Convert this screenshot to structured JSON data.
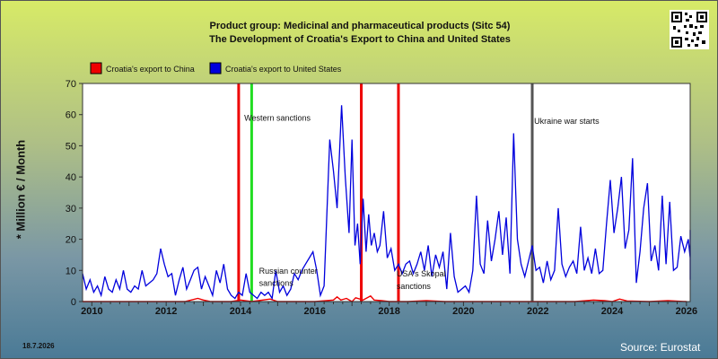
{
  "header": {
    "title_line1": "Product group: Medicinal and pharmaceutical products (Sitc 54)",
    "title_line2": "The Development of Croatia's Export to  China and United States"
  },
  "footer": {
    "date": "18.7.2026",
    "source": "Source: Eurostat"
  },
  "colors": {
    "china": "#ee0000",
    "usa": "#0000dd",
    "plot_bg": "#ffffff",
    "sanction_red": "#ee0000",
    "sanction_green": "#22dd22",
    "war_line": "#555555"
  },
  "chart_data": {
    "type": "line",
    "ylabel": "* Million € / Month",
    "xlabel": "",
    "xlim": [
      2009.75,
      2026.1
    ],
    "ylim": [
      0,
      70
    ],
    "yticks": [
      "0",
      "10",
      "20",
      "30",
      "40",
      "50",
      "60",
      "70"
    ],
    "xticks": [
      "2010",
      "2012",
      "2014",
      "2016",
      "2018",
      "2020",
      "2022",
      "2024",
      "2026"
    ],
    "grid": false,
    "legend_position": "top-left",
    "series": [
      {
        "name": "Croatia's export to China",
        "color": "#ee0000",
        "points": [
          [
            2009.75,
            0
          ],
          [
            2010.5,
            0
          ],
          [
            2011.5,
            0
          ],
          [
            2012.5,
            0
          ],
          [
            2012.85,
            1
          ],
          [
            2013.0,
            0.5
          ],
          [
            2013.2,
            0
          ],
          [
            2013.75,
            0
          ],
          [
            2014.0,
            0.5
          ],
          [
            2014.3,
            0
          ],
          [
            2014.8,
            0.8
          ],
          [
            2015.0,
            0
          ],
          [
            2015.5,
            0
          ],
          [
            2016.0,
            0
          ],
          [
            2016.5,
            0.5
          ],
          [
            2016.6,
            1.5
          ],
          [
            2016.7,
            0.5
          ],
          [
            2016.85,
            1
          ],
          [
            2017.0,
            0
          ],
          [
            2017.1,
            1.2
          ],
          [
            2017.3,
            0.5
          ],
          [
            2017.5,
            1.8
          ],
          [
            2017.6,
            0.5
          ],
          [
            2017.8,
            0.3
          ],
          [
            2018.0,
            0
          ],
          [
            2018.5,
            0
          ],
          [
            2019.0,
            0.3
          ],
          [
            2019.5,
            0
          ],
          [
            2020.0,
            0
          ],
          [
            2021.0,
            0
          ],
          [
            2022.0,
            0
          ],
          [
            2023.0,
            0
          ],
          [
            2023.5,
            0.5
          ],
          [
            2023.8,
            0.3
          ],
          [
            2024.0,
            0
          ],
          [
            2024.2,
            0.8
          ],
          [
            2024.4,
            0.2
          ],
          [
            2025.0,
            0
          ],
          [
            2025.5,
            0.3
          ],
          [
            2026.0,
            0
          ]
        ]
      },
      {
        "name": "Croatia's export to United States",
        "color": "#0000dd",
        "points": [
          [
            2009.75,
            9
          ],
          [
            2009.85,
            4
          ],
          [
            2009.95,
            7
          ],
          [
            2010.05,
            3
          ],
          [
            2010.15,
            5
          ],
          [
            2010.25,
            2
          ],
          [
            2010.35,
            8
          ],
          [
            2010.45,
            4
          ],
          [
            2010.55,
            3
          ],
          [
            2010.65,
            7
          ],
          [
            2010.75,
            4
          ],
          [
            2010.85,
            10
          ],
          [
            2010.95,
            4
          ],
          [
            2011.05,
            3
          ],
          [
            2011.15,
            5
          ],
          [
            2011.25,
            4
          ],
          [
            2011.35,
            10
          ],
          [
            2011.45,
            5
          ],
          [
            2011.55,
            6
          ],
          [
            2011.65,
            7
          ],
          [
            2011.75,
            9
          ],
          [
            2011.85,
            17
          ],
          [
            2011.95,
            12
          ],
          [
            2012.05,
            8
          ],
          [
            2012.15,
            9
          ],
          [
            2012.25,
            2
          ],
          [
            2012.35,
            7
          ],
          [
            2012.45,
            11
          ],
          [
            2012.55,
            4
          ],
          [
            2012.65,
            7
          ],
          [
            2012.75,
            10
          ],
          [
            2012.85,
            11
          ],
          [
            2012.95,
            4
          ],
          [
            2013.05,
            8
          ],
          [
            2013.15,
            5
          ],
          [
            2013.25,
            2
          ],
          [
            2013.35,
            10
          ],
          [
            2013.45,
            6
          ],
          [
            2013.55,
            12
          ],
          [
            2013.65,
            4
          ],
          [
            2013.75,
            2
          ],
          [
            2013.85,
            1
          ],
          [
            2013.95,
            3
          ],
          [
            2014.05,
            2
          ],
          [
            2014.15,
            9
          ],
          [
            2014.25,
            3
          ],
          [
            2014.35,
            2
          ],
          [
            2014.45,
            1
          ],
          [
            2014.55,
            3
          ],
          [
            2014.65,
            2
          ],
          [
            2014.75,
            3
          ],
          [
            2014.85,
            1
          ],
          [
            2014.95,
            10
          ],
          [
            2015.05,
            3
          ],
          [
            2015.15,
            5
          ],
          [
            2015.25,
            2
          ],
          [
            2015.35,
            4
          ],
          [
            2015.45,
            9
          ],
          [
            2015.55,
            7
          ],
          [
            2015.65,
            10
          ],
          [
            2015.75,
            12
          ],
          [
            2015.85,
            14
          ],
          [
            2015.95,
            16
          ],
          [
            2016.05,
            10
          ],
          [
            2016.15,
            2
          ],
          [
            2016.25,
            5
          ],
          [
            2016.4,
            52
          ],
          [
            2016.5,
            42
          ],
          [
            2016.6,
            30
          ],
          [
            2016.72,
            63
          ],
          [
            2016.82,
            40
          ],
          [
            2016.92,
            22
          ],
          [
            2017.0,
            52
          ],
          [
            2017.08,
            18
          ],
          [
            2017.15,
            25
          ],
          [
            2017.22,
            12
          ],
          [
            2017.3,
            33
          ],
          [
            2017.38,
            16
          ],
          [
            2017.45,
            28
          ],
          [
            2017.52,
            18
          ],
          [
            2017.6,
            22
          ],
          [
            2017.68,
            16
          ],
          [
            2017.75,
            18
          ],
          [
            2017.85,
            29
          ],
          [
            2017.95,
            14
          ],
          [
            2018.05,
            17
          ],
          [
            2018.15,
            10
          ],
          [
            2018.25,
            12
          ],
          [
            2018.35,
            9
          ],
          [
            2018.45,
            12
          ],
          [
            2018.55,
            13
          ],
          [
            2018.65,
            9
          ],
          [
            2018.75,
            12
          ],
          [
            2018.85,
            16
          ],
          [
            2018.95,
            10
          ],
          [
            2019.05,
            18
          ],
          [
            2019.15,
            8
          ],
          [
            2019.25,
            15
          ],
          [
            2019.35,
            11
          ],
          [
            2019.45,
            16
          ],
          [
            2019.55,
            4
          ],
          [
            2019.65,
            22
          ],
          [
            2019.75,
            8
          ],
          [
            2019.85,
            3
          ],
          [
            2019.95,
            4
          ],
          [
            2020.05,
            5
          ],
          [
            2020.15,
            3
          ],
          [
            2020.25,
            10
          ],
          [
            2020.35,
            34
          ],
          [
            2020.45,
            12
          ],
          [
            2020.55,
            9
          ],
          [
            2020.65,
            26
          ],
          [
            2020.75,
            13
          ],
          [
            2020.85,
            20
          ],
          [
            2020.95,
            29
          ],
          [
            2021.05,
            15
          ],
          [
            2021.15,
            27
          ],
          [
            2021.25,
            9
          ],
          [
            2021.35,
            54
          ],
          [
            2021.45,
            20
          ],
          [
            2021.55,
            12
          ],
          [
            2021.65,
            8
          ],
          [
            2021.75,
            13
          ],
          [
            2021.85,
            18
          ],
          [
            2021.95,
            10
          ],
          [
            2022.05,
            11
          ],
          [
            2022.15,
            6
          ],
          [
            2022.25,
            13
          ],
          [
            2022.35,
            7
          ],
          [
            2022.45,
            10
          ],
          [
            2022.55,
            30
          ],
          [
            2022.65,
            12
          ],
          [
            2022.75,
            8
          ],
          [
            2022.85,
            11
          ],
          [
            2022.95,
            13
          ],
          [
            2023.05,
            9
          ],
          [
            2023.15,
            24
          ],
          [
            2023.25,
            10
          ],
          [
            2023.35,
            14
          ],
          [
            2023.45,
            9
          ],
          [
            2023.55,
            17
          ],
          [
            2023.65,
            9
          ],
          [
            2023.75,
            10
          ],
          [
            2023.85,
            25
          ],
          [
            2023.95,
            39
          ],
          [
            2024.05,
            22
          ],
          [
            2024.15,
            30
          ],
          [
            2024.25,
            40
          ],
          [
            2024.35,
            17
          ],
          [
            2024.45,
            23
          ],
          [
            2024.55,
            46
          ],
          [
            2024.65,
            6
          ],
          [
            2024.75,
            16
          ],
          [
            2024.85,
            30
          ],
          [
            2024.95,
            38
          ],
          [
            2025.05,
            13
          ],
          [
            2025.15,
            18
          ],
          [
            2025.25,
            10
          ],
          [
            2025.35,
            34
          ],
          [
            2025.45,
            12
          ],
          [
            2025.55,
            32
          ],
          [
            2025.65,
            10
          ],
          [
            2025.75,
            11
          ],
          [
            2025.85,
            21
          ],
          [
            2025.95,
            16
          ],
          [
            2026.05,
            20
          ],
          [
            2026.15,
            14
          ],
          [
            2026.25,
            23
          ],
          [
            2026.35,
            7
          ]
        ]
      }
    ],
    "vertical_markers": [
      {
        "x": 2013.95,
        "color": "#ee0000"
      },
      {
        "x": 2014.3,
        "color": "#22dd22"
      },
      {
        "x": 2017.25,
        "color": "#ee0000"
      },
      {
        "x": 2018.25,
        "color": "#ee0000"
      },
      {
        "x": 2021.85,
        "color": "#555555"
      }
    ],
    "annotations": [
      {
        "text": "Western sanctions",
        "x": 2014.1,
        "y": 58
      },
      {
        "text": "Russian counter",
        "x": 2014.5,
        "y": 9
      },
      {
        "text": "sanctions",
        "x": 2014.5,
        "y": 5
      },
      {
        "text": "USA's Skopal",
        "x": 2018.2,
        "y": 8
      },
      {
        "text": "sanctions",
        "x": 2018.2,
        "y": 4
      },
      {
        "text": "Ukraine war starts",
        "x": 2021.9,
        "y": 57
      }
    ]
  }
}
